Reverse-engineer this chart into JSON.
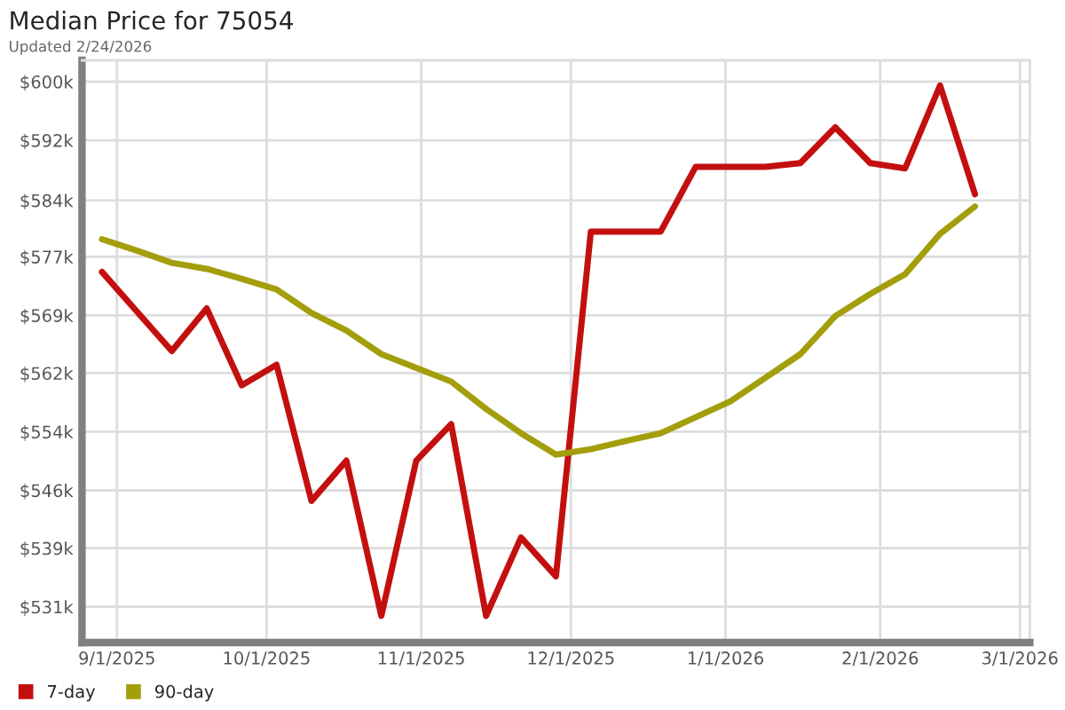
{
  "chart_data": {
    "type": "line",
    "title": "Median Price for 75054",
    "subtitle": "Updated 2/24/2026",
    "x": [
      "2025-08-29",
      "2025-09-05",
      "2025-09-12",
      "2025-09-19",
      "2025-09-26",
      "2025-10-03",
      "2025-10-10",
      "2025-10-17",
      "2025-10-24",
      "2025-10-31",
      "2025-11-07",
      "2025-11-14",
      "2025-11-21",
      "2025-11-28",
      "2025-12-05",
      "2025-12-12",
      "2025-12-19",
      "2025-12-26",
      "2026-01-02",
      "2026-01-09",
      "2026-01-16",
      "2026-01-23",
      "2026-01-30",
      "2026-02-06",
      "2026-02-13",
      "2026-02-20"
    ],
    "series": [
      {
        "name": "7-day",
        "color": "#c40f0f",
        "values": [
          575.0,
          569.8,
          564.6,
          570.2,
          560.1,
          562.8,
          544.9,
          550.2,
          529.8,
          550.2,
          555.0,
          529.8,
          540.1,
          535.0,
          580.3,
          580.3,
          580.3,
          588.8,
          588.8,
          588.8,
          589.3,
          594.0,
          589.3,
          588.6,
          599.5,
          585.2
        ]
      },
      {
        "name": "90-day",
        "color": "#a39e0c",
        "values": [
          579.3,
          577.8,
          576.2,
          575.4,
          574.1,
          572.7,
          569.6,
          567.3,
          564.2,
          562.4,
          560.6,
          557.0,
          553.8,
          551.0,
          551.7,
          552.8,
          553.8,
          555.9,
          558.0,
          561.1,
          564.2,
          569.2,
          572.1,
          574.7,
          580.0,
          583.6
        ]
      }
    ],
    "xlim": [
      "2025-08-25",
      "2026-03-03"
    ],
    "xticks": [
      {
        "value": "2025-09-01",
        "label": "9/1/2025"
      },
      {
        "value": "2025-10-01",
        "label": "10/1/2025"
      },
      {
        "value": "2025-11-01",
        "label": "11/1/2025"
      },
      {
        "value": "2025-12-01",
        "label": "12/1/2025"
      },
      {
        "value": "2026-01-01",
        "label": "1/1/2026"
      },
      {
        "value": "2026-02-01",
        "label": "2/1/2026"
      },
      {
        "value": "2026-03-01",
        "label": "3/1/2026"
      }
    ],
    "ylim": [
      526.3,
      602.8
    ],
    "yticks": [
      {
        "value": 531,
        "label": "$531k"
      },
      {
        "value": 538.7,
        "label": "$539k"
      },
      {
        "value": 546.3,
        "label": "$546k"
      },
      {
        "value": 554,
        "label": "$554k"
      },
      {
        "value": 561.7,
        "label": "$562k"
      },
      {
        "value": 569.3,
        "label": "$569k"
      },
      {
        "value": 577,
        "label": "$577k"
      },
      {
        "value": 584.4,
        "label": "$584k"
      },
      {
        "value": 592.3,
        "label": "$592k"
      },
      {
        "value": 600,
        "label": "$600k"
      }
    ],
    "grid": true,
    "legend": "bottom left",
    "marker": "none",
    "line_style": "solid"
  }
}
